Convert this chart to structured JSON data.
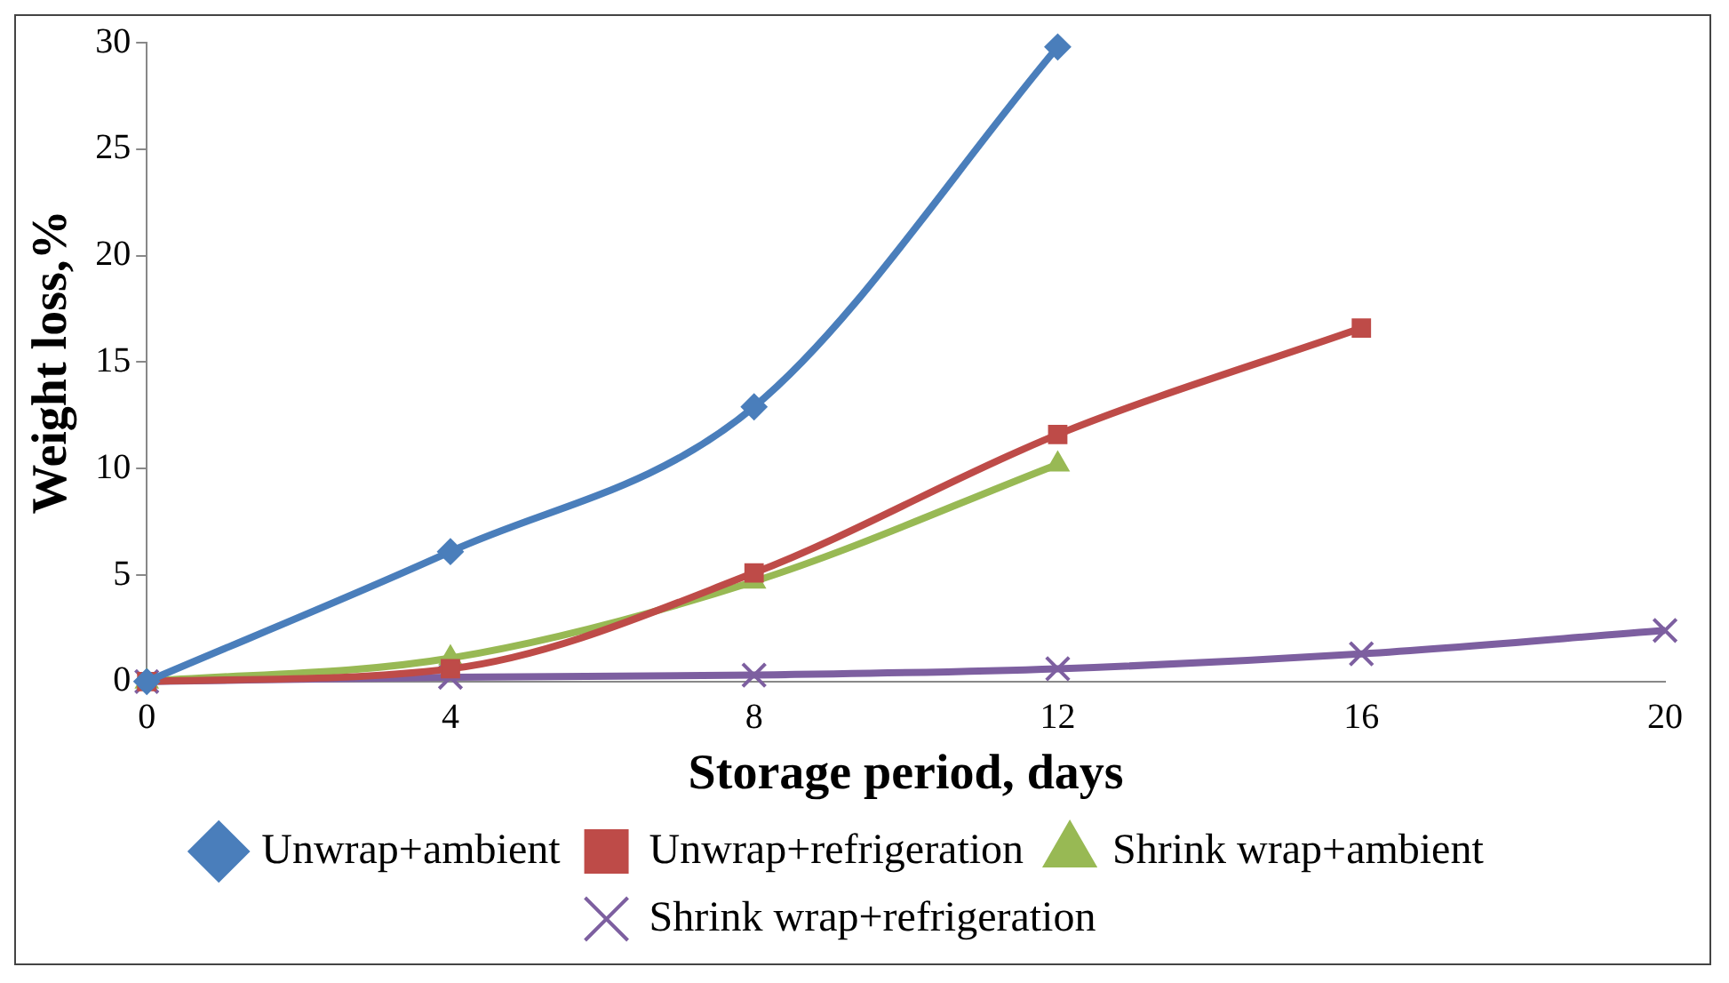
{
  "chart_data": {
    "type": "line",
    "xlabel": "Storage period, days",
    "ylabel": "Weight loss,%",
    "xlim": [
      0,
      20
    ],
    "xticks": [
      0,
      4,
      8,
      12,
      16,
      20
    ],
    "ylim": [
      0,
      30
    ],
    "yticks": [
      0,
      5,
      10,
      15,
      20,
      25,
      30
    ],
    "grid": false,
    "legend": "bottom",
    "line_style": "solid",
    "series": [
      {
        "name": "Unwrap+ambient",
        "color": "#4a7ebb",
        "marker": "diamond",
        "x": [
          0,
          4,
          8,
          12
        ],
        "values": [
          0,
          6.1,
          12.9,
          29.8
        ]
      },
      {
        "name": "Unwrap+refrigeration",
        "color": "#be4b48",
        "marker": "square",
        "x": [
          0,
          4,
          8,
          12,
          16
        ],
        "values": [
          0,
          0.6,
          5.1,
          11.6,
          16.6
        ]
      },
      {
        "name": "Shrink wrap+ambient",
        "color": "#98b954",
        "marker": "triangle",
        "x": [
          0,
          4,
          8,
          12
        ],
        "values": [
          0,
          1.1,
          4.7,
          10.2
        ]
      },
      {
        "name": "Shrink wrap+refrigeration",
        "color": "#7d5fa0",
        "marker": "cross",
        "x": [
          0,
          4,
          8,
          12,
          16,
          20
        ],
        "values": [
          0,
          0.2,
          0.3,
          0.6,
          1.3,
          2.4
        ]
      }
    ]
  }
}
